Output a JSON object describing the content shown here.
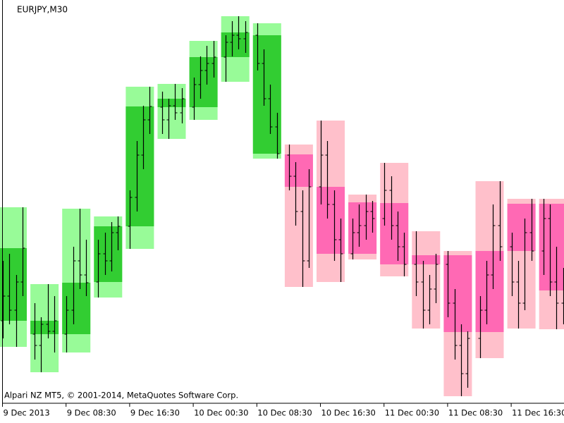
{
  "chart_data": {
    "type": "candlestick",
    "title": "EURJPY,M30",
    "footer": "Alpari NZ MT5, © 2001-2014, MetaQuotes Software Corp.",
    "x_labels": [
      "9 Dec 2013",
      "9 Dec 08:30",
      "9 Dec 16:30",
      "10 Dec 00:30",
      "10 Dec 08:30",
      "10 Dec 16:30",
      "11 Dec 00:30",
      "11 Dec 08:30",
      "11 Dec 16:30"
    ],
    "ylim": [
      0,
      570
    ],
    "colors": {
      "up_body": "#32cd32",
      "up_range": "#98fb98",
      "down_body": "#ff69b4",
      "down_range": "#ffc0cb",
      "bar": "#000000"
    },
    "candles": [
      {
        "open": 115,
        "high": 276,
        "low": 78,
        "close": 218
      },
      {
        "open": 96,
        "high": 167,
        "low": 42,
        "close": 115
      },
      {
        "open": 96,
        "high": 274,
        "low": 70,
        "close": 169
      },
      {
        "open": 170,
        "high": 263,
        "low": 148,
        "close": 249
      },
      {
        "open": 249,
        "high": 447,
        "low": 217,
        "close": 419
      },
      {
        "open": 418,
        "high": 451,
        "low": 373,
        "close": 430
      },
      {
        "open": 418,
        "high": 512,
        "low": 400,
        "close": 489
      },
      {
        "open": 489,
        "high": 547,
        "low": 454,
        "close": 524
      },
      {
        "open": 352,
        "high": 537,
        "low": 345,
        "close": 520
      },
      {
        "open": 351,
        "high": 365,
        "low": 163,
        "close": 305
      },
      {
        "open": 305,
        "high": 399,
        "low": 170,
        "close": 210
      },
      {
        "open": 283,
        "high": 294,
        "low": 202,
        "close": 210
      },
      {
        "open": 282,
        "high": 339,
        "low": 178,
        "close": 195
      },
      {
        "open": 208,
        "high": 242,
        "low": 104,
        "close": 195
      },
      {
        "open": 208,
        "high": 214,
        "low": 8,
        "close": 99
      },
      {
        "open": 214,
        "high": 313,
        "low": 62,
        "close": 99
      },
      {
        "open": 281,
        "high": 288,
        "low": 104,
        "close": 214
      },
      {
        "open": 281,
        "high": 288,
        "low": 103,
        "close": 158
      }
    ],
    "bars": [
      [
        115,
        200,
        90,
        150
      ],
      [
        150,
        210,
        110,
        130
      ],
      [
        130,
        180,
        78,
        170
      ],
      [
        170,
        276,
        150,
        218
      ],
      [
        96,
        140,
        60,
        80
      ],
      [
        80,
        120,
        42,
        110
      ],
      [
        110,
        167,
        90,
        100
      ],
      [
        100,
        150,
        70,
        115
      ],
      [
        96,
        150,
        70,
        130
      ],
      [
        130,
        220,
        110,
        200
      ],
      [
        200,
        274,
        160,
        180
      ],
      [
        180,
        230,
        150,
        169
      ],
      [
        170,
        230,
        148,
        210
      ],
      [
        210,
        240,
        180,
        200
      ],
      [
        200,
        255,
        185,
        240
      ],
      [
        240,
        263,
        215,
        249
      ],
      [
        249,
        300,
        217,
        290
      ],
      [
        290,
        370,
        270,
        350
      ],
      [
        350,
        420,
        330,
        400
      ],
      [
        400,
        447,
        380,
        419
      ],
      [
        418,
        440,
        380,
        400
      ],
      [
        400,
        430,
        373,
        420
      ],
      [
        420,
        451,
        400,
        410
      ],
      [
        410,
        445,
        395,
        430
      ],
      [
        418,
        460,
        400,
        450
      ],
      [
        450,
        490,
        430,
        470
      ],
      [
        470,
        505,
        450,
        480
      ],
      [
        480,
        512,
        460,
        489
      ],
      [
        489,
        520,
        454,
        510
      ],
      [
        510,
        540,
        490,
        520
      ],
      [
        520,
        547,
        500,
        515
      ],
      [
        515,
        540,
        495,
        524
      ],
      [
        520,
        537,
        470,
        480
      ],
      [
        480,
        500,
        420,
        430
      ],
      [
        430,
        450,
        380,
        390
      ],
      [
        390,
        410,
        345,
        352
      ],
      [
        350,
        365,
        300,
        320
      ],
      [
        320,
        340,
        250,
        270
      ],
      [
        270,
        300,
        163,
        200
      ],
      [
        200,
        330,
        190,
        305
      ],
      [
        305,
        399,
        280,
        350
      ],
      [
        350,
        370,
        260,
        280
      ],
      [
        280,
        300,
        200,
        230
      ],
      [
        230,
        260,
        170,
        210
      ],
      [
        210,
        260,
        202,
        240
      ],
      [
        240,
        280,
        220,
        250
      ],
      [
        250,
        294,
        230,
        270
      ],
      [
        270,
        285,
        240,
        260
      ],
      [
        260,
        339,
        250,
        300
      ],
      [
        300,
        320,
        230,
        250
      ],
      [
        250,
        270,
        200,
        220
      ],
      [
        220,
        240,
        178,
        195
      ],
      [
        195,
        242,
        150,
        170
      ],
      [
        170,
        200,
        104,
        130
      ],
      [
        130,
        180,
        110,
        160
      ],
      [
        160,
        210,
        140,
        195
      ],
      [
        195,
        214,
        120,
        140
      ],
      [
        140,
        160,
        60,
        80
      ],
      [
        80,
        110,
        8,
        40
      ],
      [
        40,
        100,
        20,
        90
      ],
      [
        90,
        150,
        62,
        130
      ],
      [
        130,
        200,
        110,
        180
      ],
      [
        180,
        280,
        160,
        250
      ],
      [
        250,
        313,
        200,
        220
      ],
      [
        220,
        240,
        150,
        170
      ],
      [
        170,
        200,
        104,
        140
      ],
      [
        140,
        260,
        130,
        240
      ],
      [
        240,
        288,
        200,
        214
      ],
      [
        214,
        288,
        180,
        260
      ],
      [
        260,
        280,
        150,
        170
      ],
      [
        170,
        220,
        103,
        140
      ],
      [
        140,
        190,
        110,
        158
      ]
    ]
  }
}
